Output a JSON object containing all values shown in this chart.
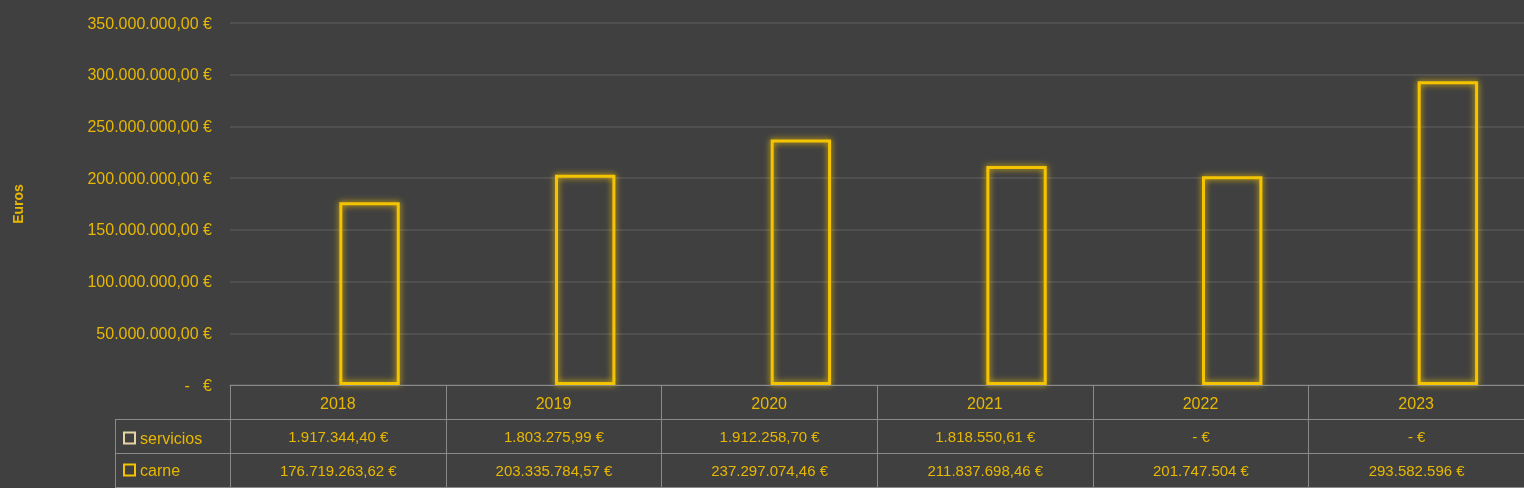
{
  "chart_data": {
    "type": "bar",
    "ylabel": "Euros",
    "categories": [
      "2018",
      "2019",
      "2020",
      "2021",
      "2022",
      "2023"
    ],
    "series": [
      {
        "name": "servicios",
        "color": "#e6d3a3",
        "values": [
          1917344.4,
          1803275.99,
          1912258.7,
          1818550.61,
          0,
          0
        ],
        "value_labels": [
          "1.917.344,40 €",
          "1.803.275,99 €",
          "1.912.258,70 €",
          "1.818.550,61 €",
          "-   €",
          "-   €"
        ]
      },
      {
        "name": "carne",
        "color": "#f5c400",
        "values": [
          176719263.62,
          203335784.57,
          237297074.46,
          211837698.46,
          201747504,
          293582596
        ],
        "value_labels": [
          "176.719.263,62 €",
          "203.335.784,57 €",
          "237.297.074,46 €",
          "211.837.698,46 €",
          "201.747.504 €",
          "293.582.596 €"
        ]
      }
    ],
    "ylim": [
      0,
      350000000
    ],
    "yticks": [
      {
        "value": 0,
        "label": "-   €"
      },
      {
        "value": 50000000,
        "label": "50.000.000,00 €"
      },
      {
        "value": 100000000,
        "label": "100.000.000,00 €"
      },
      {
        "value": 150000000,
        "label": "150.000.000,00 €"
      },
      {
        "value": 200000000,
        "label": "200.000.000,00 €"
      },
      {
        "value": 250000000,
        "label": "250.000.000,00 €"
      },
      {
        "value": 300000000,
        "label": "300.000.000,00 €"
      },
      {
        "value": 350000000,
        "label": "350.000.000,00 €"
      }
    ],
    "grid": "y",
    "legend": "bottom"
  }
}
